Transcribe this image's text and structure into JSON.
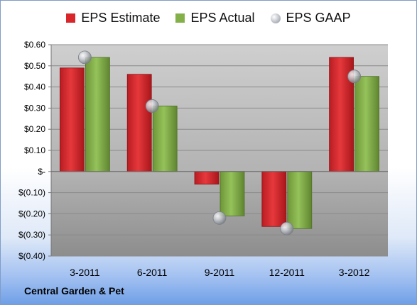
{
  "chart_data": {
    "type": "bar",
    "categories": [
      "3-2011",
      "6-2011",
      "9-2011",
      "12-2011",
      "3-2012"
    ],
    "series": [
      {
        "name": "EPS Estimate",
        "kind": "bar",
        "color": "#d9262b",
        "values": [
          0.49,
          0.46,
          -0.06,
          -0.26,
          0.54
        ]
      },
      {
        "name": "EPS Actual",
        "kind": "bar",
        "color": "#84b04a",
        "values": [
          0.54,
          0.31,
          -0.21,
          -0.27,
          0.45
        ]
      },
      {
        "name": "EPS GAAP",
        "kind": "marker",
        "color": "#b8bcc4",
        "values": [
          0.54,
          0.31,
          -0.22,
          -0.27,
          0.45
        ]
      }
    ],
    "ylim": [
      -0.4,
      0.6
    ],
    "yticks": [
      0.6,
      0.5,
      0.4,
      0.3,
      0.2,
      0.1,
      0.0,
      -0.1,
      -0.2,
      -0.3,
      -0.4
    ],
    "ytick_labels": [
      "$0.60",
      "$0.50",
      "$0.40",
      "$0.30",
      "$0.20",
      "$0.10",
      "$-",
      "$(0.10)",
      "$(0.20)",
      "$(0.30)",
      "$(0.40)"
    ],
    "grid": true,
    "legend_position": "top"
  },
  "footer": {
    "company": "Central Garden & Pet"
  }
}
